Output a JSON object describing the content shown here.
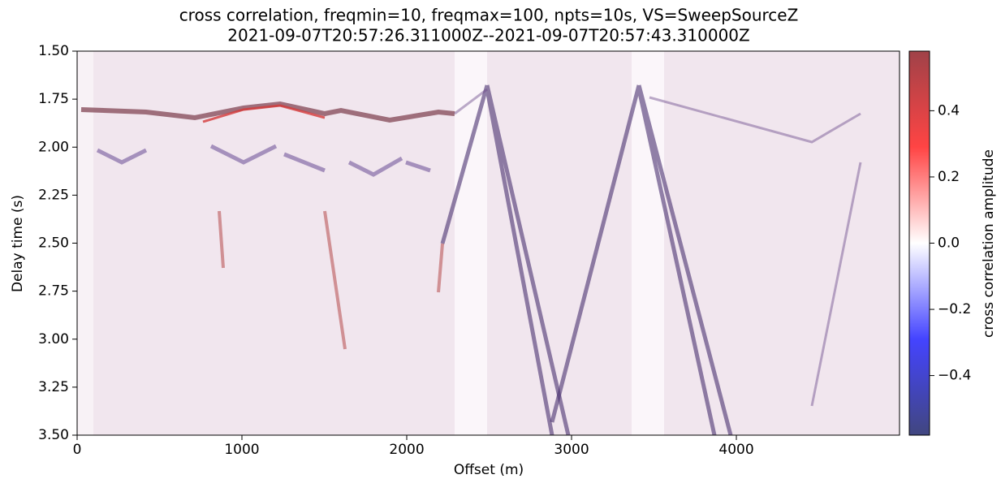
{
  "chart_data": {
    "type": "heatmap",
    "title": "cross correlation, freqmin=10, freqmax=100, npts=10s, VS=SweepSourceZ",
    "subtitle": "2021-09-07T20:57:26.311000Z--2021-09-07T20:57:43.310000Z",
    "x_label": "Offset (m)",
    "y_label": "Delay time (s)",
    "xlim": [
      0,
      4990
    ],
    "xticks": [
      0,
      1000,
      2000,
      3000,
      4000
    ],
    "ylim": [
      1.5,
      3.5
    ],
    "y_inverted": true,
    "yticks": [
      {
        "value": 1.5,
        "label": "1.50"
      },
      {
        "value": 1.75,
        "label": "1.75"
      },
      {
        "value": 2.0,
        "label": "2.00"
      },
      2.25,
      {
        "value": 2.5,
        "label": "2.50"
      },
      2.75,
      {
        "value": 3.0,
        "label": "3.00"
      },
      3.25,
      {
        "value": 3.5,
        "label": "3.50"
      }
    ],
    "colorbar": {
      "label": "cross correlation amplitude",
      "clim": [
        -0.58,
        0.58
      ],
      "ticks": [
        {
          "value": -0.4,
          "label": "−0.4"
        },
        {
          "value": -0.2,
          "label": "−0.2"
        },
        {
          "value": 0.0,
          "label": "0.0"
        },
        0.2,
        0.4
      ],
      "colormap": [
        "#41467f",
        "#4444ff",
        "#ffffff",
        "#ff4444",
        "#a04248"
      ]
    }
  }
}
